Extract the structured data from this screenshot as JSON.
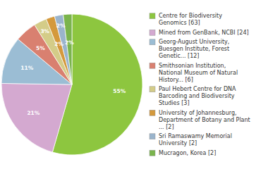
{
  "chart_data": {
    "type": "pie",
    "categories": [
      "Centre for Biodiversity\nGenomics [63]",
      "Mined from GenBank, NCBI [24]",
      "Georg-August University,\nBuesgen Institute, Forest\nGenetic... [12]",
      "Smithsonian Institution,\nNational Museum of Natural\nHistory... [6]",
      "Paul Hebert Centre for DNA\nBarcoding and Biodiversity\nStudies [3]",
      "University of Johannesburg,\nDepartment of Botany and Plant\n... [2]",
      "Sri Ramaswamy Memorial\nUniversity [2]",
      "Mucragon, Korea [2]"
    ],
    "values": [
      55,
      21,
      11,
      5,
      3,
      2,
      2,
      2
    ],
    "value_labels": [
      "55%",
      "21%",
      "11%",
      "5%",
      "3%",
      "2%",
      "2%",
      "2%"
    ],
    "colors": [
      "#8dc63f",
      "#d4a9d0",
      "#9bbdd4",
      "#d98070",
      "#d4cc88",
      "#d4993c",
      "#9ab4cc",
      "#7ab44c"
    ],
    "data_labels": true,
    "legend": "right"
  }
}
